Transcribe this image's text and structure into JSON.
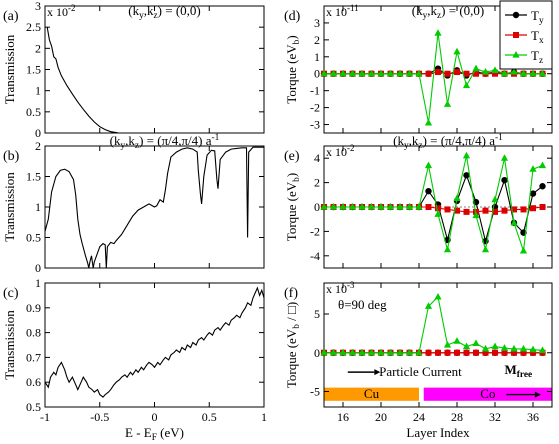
{
  "chart_data": [
    {
      "type": "line",
      "panel_label": "(a)",
      "title": "(k_y,k_z) = (0,0)",
      "ylabel": "Transmission",
      "y_exponent": "x 10^-2",
      "xlim": [
        -1,
        1
      ],
      "ylim": [
        0,
        3
      ],
      "yticks": [
        "0",
        "0.5",
        "1",
        "1.5",
        "2",
        "2.5",
        "3"
      ],
      "series": [
        {
          "values": [
            [
              -0.98,
              2.5
            ],
            [
              -0.96,
              2.2
            ],
            [
              -0.94,
              2.05
            ],
            [
              -0.92,
              1.8
            ],
            [
              -0.9,
              1.75
            ],
            [
              -0.88,
              1.55
            ],
            [
              -0.85,
              1.35
            ],
            [
              -0.8,
              1.12
            ],
            [
              -0.75,
              0.92
            ],
            [
              -0.7,
              0.73
            ],
            [
              -0.65,
              0.56
            ],
            [
              -0.6,
              0.4
            ],
            [
              -0.55,
              0.26
            ],
            [
              -0.5,
              0.15
            ],
            [
              -0.45,
              0.08
            ],
            [
              -0.4,
              0.03
            ],
            [
              -0.35,
              0.01
            ],
            [
              -0.33,
              0.0
            ]
          ]
        }
      ]
    },
    {
      "type": "line",
      "panel_label": "(b)",
      "title": "(k_y,k_z) = (π/4,π/4) a^-1",
      "ylabel": "Transmission",
      "xlim": [
        -1,
        1
      ],
      "ylim": [
        0,
        2
      ],
      "yticks": [
        "0",
        "0.5",
        "1",
        "1.5",
        "2"
      ],
      "series": [
        {
          "values": [
            [
              -1,
              0.6
            ],
            [
              -0.97,
              0.8
            ],
            [
              -0.94,
              1.25
            ],
            [
              -0.9,
              1.5
            ],
            [
              -0.86,
              1.6
            ],
            [
              -0.82,
              1.62
            ],
            [
              -0.78,
              1.58
            ],
            [
              -0.74,
              1.45
            ],
            [
              -0.72,
              1.2
            ],
            [
              -0.7,
              0.8
            ],
            [
              -0.68,
              0.55
            ],
            [
              -0.66,
              0.4
            ],
            [
              -0.63,
              0.2
            ],
            [
              -0.61,
              0.08
            ],
            [
              -0.6,
              0.0
            ],
            [
              -0.59,
              0.1
            ],
            [
              -0.575,
              0.2
            ],
            [
              -0.56,
              0.0
            ],
            [
              -0.55,
              0.1
            ],
            [
              -0.53,
              0.2
            ],
            [
              -0.5,
              0.35
            ],
            [
              -0.47,
              0.4
            ],
            [
              -0.45,
              0.38
            ],
            [
              -0.44,
              0.0
            ],
            [
              -0.43,
              0.35
            ],
            [
              -0.4,
              0.42
            ],
            [
              -0.37,
              0.4
            ],
            [
              -0.35,
              0.45
            ],
            [
              -0.3,
              0.55
            ],
            [
              -0.25,
              0.7
            ],
            [
              -0.2,
              0.85
            ],
            [
              -0.15,
              0.95
            ],
            [
              -0.1,
              1.0
            ],
            [
              -0.05,
              1.05
            ],
            [
              0,
              1.0
            ],
            [
              0.02,
              1.02
            ],
            [
              0.05,
              1.12
            ],
            [
              0.08,
              1.08
            ],
            [
              0.1,
              1.28
            ],
            [
              0.12,
              1.55
            ],
            [
              0.15,
              1.82
            ],
            [
              0.2,
              1.9
            ],
            [
              0.25,
              1.95
            ],
            [
              0.3,
              1.97
            ],
            [
              0.35,
              1.95
            ],
            [
              0.39,
              1.9
            ],
            [
              0.4,
              1.6
            ],
            [
              0.42,
              1.2
            ],
            [
              0.43,
              1.05
            ],
            [
              0.45,
              1.5
            ],
            [
              0.48,
              1.85
            ],
            [
              0.52,
              1.93
            ],
            [
              0.55,
              1.92
            ],
            [
              0.57,
              1.45
            ],
            [
              0.58,
              1.3
            ],
            [
              0.6,
              1.78
            ],
            [
              0.65,
              1.9
            ],
            [
              0.7,
              1.95
            ],
            [
              0.75,
              1.96
            ],
            [
              0.8,
              1.97
            ],
            [
              0.84,
              1.97
            ],
            [
              0.85,
              0.5
            ],
            [
              0.86,
              1.9
            ],
            [
              0.9,
              1.98
            ],
            [
              0.95,
              1.98
            ],
            [
              1,
              1.98
            ]
          ]
        }
      ]
    },
    {
      "type": "line",
      "panel_label": "(c)",
      "xlabel": "E - E_F (eV)",
      "ylabel": "Transmission",
      "xlim": [
        -1,
        1
      ],
      "ylim": [
        0.5,
        1
      ],
      "xticks": [
        "-1",
        "-0.5",
        "0",
        "0.5",
        "1"
      ],
      "yticks": [
        "0.5",
        "0.6",
        "0.7",
        "0.8",
        "0.9",
        "1"
      ],
      "series": [
        {
          "values": [
            [
              -1,
              0.6
            ],
            [
              -0.97,
              0.58
            ],
            [
              -0.95,
              0.62
            ],
            [
              -0.92,
              0.64
            ],
            [
              -0.9,
              0.63
            ],
            [
              -0.88,
              0.66
            ],
            [
              -0.85,
              0.68
            ],
            [
              -0.82,
              0.65
            ],
            [
              -0.8,
              0.62
            ],
            [
              -0.78,
              0.6
            ],
            [
              -0.75,
              0.62
            ],
            [
              -0.72,
              0.59
            ],
            [
              -0.7,
              0.57
            ],
            [
              -0.67,
              0.6
            ],
            [
              -0.65,
              0.62
            ],
            [
              -0.62,
              0.6
            ],
            [
              -0.6,
              0.58
            ],
            [
              -0.57,
              0.57
            ],
            [
              -0.55,
              0.56
            ],
            [
              -0.52,
              0.57
            ],
            [
              -0.5,
              0.55
            ],
            [
              -0.47,
              0.54
            ],
            [
              -0.45,
              0.55
            ],
            [
              -0.42,
              0.56
            ],
            [
              -0.4,
              0.57
            ],
            [
              -0.37,
              0.59
            ],
            [
              -0.35,
              0.6
            ],
            [
              -0.32,
              0.61
            ],
            [
              -0.3,
              0.62
            ],
            [
              -0.27,
              0.63
            ],
            [
              -0.25,
              0.62
            ],
            [
              -0.22,
              0.64
            ],
            [
              -0.2,
              0.63
            ],
            [
              -0.17,
              0.65
            ],
            [
              -0.15,
              0.64
            ],
            [
              -0.12,
              0.66
            ],
            [
              -0.1,
              0.65
            ],
            [
              -0.07,
              0.67
            ],
            [
              -0.05,
              0.68
            ],
            [
              -0.02,
              0.67
            ],
            [
              0,
              0.66
            ],
            [
              0.03,
              0.68
            ],
            [
              0.05,
              0.67
            ],
            [
              0.08,
              0.69
            ],
            [
              0.1,
              0.7
            ],
            [
              0.13,
              0.69
            ],
            [
              0.15,
              0.71
            ],
            [
              0.18,
              0.72
            ],
            [
              0.2,
              0.73
            ],
            [
              0.23,
              0.72
            ],
            [
              0.25,
              0.74
            ],
            [
              0.28,
              0.73
            ],
            [
              0.3,
              0.75
            ],
            [
              0.33,
              0.74
            ],
            [
              0.35,
              0.76
            ],
            [
              0.38,
              0.75
            ],
            [
              0.4,
              0.77
            ],
            [
              0.43,
              0.78
            ],
            [
              0.45,
              0.77
            ],
            [
              0.48,
              0.79
            ],
            [
              0.5,
              0.8
            ],
            [
              0.53,
              0.79
            ],
            [
              0.55,
              0.81
            ],
            [
              0.58,
              0.82
            ],
            [
              0.6,
              0.81
            ],
            [
              0.63,
              0.83
            ],
            [
              0.65,
              0.84
            ],
            [
              0.68,
              0.83
            ],
            [
              0.7,
              0.85
            ],
            [
              0.73,
              0.86
            ],
            [
              0.75,
              0.87
            ],
            [
              0.78,
              0.86
            ],
            [
              0.8,
              0.88
            ],
            [
              0.83,
              0.9
            ],
            [
              0.85,
              0.92
            ],
            [
              0.88,
              0.91
            ],
            [
              0.9,
              0.94
            ],
            [
              0.92,
              0.96
            ],
            [
              0.94,
              0.98
            ],
            [
              0.96,
              0.95
            ],
            [
              0.98,
              0.97
            ],
            [
              1,
              0.94
            ]
          ]
        }
      ]
    },
    {
      "type": "line",
      "panel_label": "(d)",
      "title": "(k_y,k_z) = (0,0)",
      "ylabel": "Torque (eV_b)",
      "y_exponent": "x 10^-11",
      "xlim": [
        14,
        38
      ],
      "ylim": [
        -3.5,
        4
      ],
      "yticks": [
        "-3",
        "-2",
        "-1",
        "0",
        "1",
        "2",
        "3"
      ],
      "legend": [
        "T_y",
        "T_x",
        "T_z"
      ],
      "legend_position": "top-right",
      "x": [
        14,
        15,
        16,
        17,
        18,
        19,
        20,
        21,
        22,
        23,
        24,
        25,
        26,
        27,
        28,
        29,
        30,
        31,
        32,
        33,
        34,
        35,
        36,
        37
      ],
      "series": [
        {
          "name": "T_y",
          "color": "#000000",
          "values": [
            0,
            0,
            0,
            0,
            0,
            0,
            0,
            0,
            0,
            0,
            0,
            0,
            0.3,
            -0.1,
            0.2,
            -0.1,
            0.1,
            0,
            0.1,
            0,
            0.1,
            0,
            0,
            0
          ]
        },
        {
          "name": "T_x",
          "color": "#dd0000",
          "values": [
            0,
            0,
            0,
            0,
            0,
            0,
            0,
            0,
            0,
            0,
            0,
            0,
            0.1,
            0,
            0.1,
            0,
            0,
            0,
            0,
            0,
            0,
            0,
            0,
            0
          ]
        },
        {
          "name": "T_z",
          "color": "#00cc00",
          "values": [
            0,
            0,
            0,
            0,
            0,
            0,
            0,
            0,
            0,
            0,
            0,
            -2.9,
            2.4,
            -1.8,
            1.3,
            -0.7,
            0.3,
            0.1,
            0.2,
            0,
            0.1,
            0,
            0,
            0
          ]
        }
      ]
    },
    {
      "type": "line",
      "panel_label": "(e)",
      "title": "(k_y,k_z) = (π/4,π/4) a^-1",
      "ylabel": "Torque (eV_b)",
      "y_exponent": "x 10^-2",
      "xlim": [
        14,
        38
      ],
      "ylim": [
        -5,
        5
      ],
      "yticks": [
        "-4",
        "-2",
        "0",
        "2",
        "4"
      ],
      "x": [
        14,
        15,
        16,
        17,
        18,
        19,
        20,
        21,
        22,
        23,
        24,
        25,
        26,
        27,
        28,
        29,
        30,
        31,
        32,
        33,
        34,
        35,
        36,
        37
      ],
      "series": [
        {
          "name": "T_y",
          "color": "#000000",
          "values": [
            0,
            0,
            0,
            0,
            0,
            0,
            0,
            0,
            0,
            0,
            0,
            1.3,
            0.2,
            -2.7,
            0.5,
            2.6,
            0.4,
            -2.8,
            0,
            2.2,
            -1.3,
            -2.1,
            1.1,
            1.7
          ]
        },
        {
          "name": "T_x",
          "color": "#dd0000",
          "values": [
            0,
            0,
            0,
            0,
            0,
            0,
            0,
            0,
            0,
            0,
            0,
            0,
            -0.1,
            -0.2,
            -0.3,
            -0.4,
            -0.4,
            -0.3,
            -0.4,
            -0.3,
            -0.2,
            -0.2,
            -0.1,
            0
          ]
        },
        {
          "name": "T_z",
          "color": "#00cc00",
          "values": [
            0,
            0,
            0,
            0,
            0,
            0,
            0,
            0,
            0,
            0,
            0,
            3.4,
            -0.6,
            -3.5,
            0.7,
            4.2,
            -0.7,
            -3.5,
            0.6,
            4.0,
            -1.3,
            -3.6,
            3.1,
            3.4
          ]
        }
      ]
    },
    {
      "type": "line",
      "panel_label": "(f)",
      "ylabel": "Torque (eV_b / □)",
      "y_exponent": "x 10^-3",
      "annotation": "θ=90 deg",
      "xlabel": "Layer Index",
      "xlim": [
        14,
        38
      ],
      "ylim": [
        -7,
        9
      ],
      "xticks": [
        "16",
        "20",
        "24",
        "28",
        "32",
        "36"
      ],
      "yticks": [
        "-5",
        "0",
        "5"
      ],
      "x": [
        14,
        15,
        16,
        17,
        18,
        19,
        20,
        21,
        22,
        23,
        24,
        25,
        26,
        27,
        28,
        29,
        30,
        31,
        32,
        33,
        34,
        35,
        36,
        37
      ],
      "series": [
        {
          "name": "T_y",
          "color": "#000000",
          "values": [
            0,
            0,
            0,
            0,
            0,
            0,
            0,
            0,
            0,
            0,
            0,
            0,
            0,
            0,
            0,
            0,
            0,
            0,
            0,
            0,
            0,
            0,
            0,
            0
          ]
        },
        {
          "name": "T_x",
          "color": "#dd0000",
          "values": [
            0,
            0,
            0,
            0,
            0,
            0,
            0,
            0,
            0,
            0,
            0,
            0,
            0,
            0,
            0,
            0,
            0,
            0,
            0,
            0,
            0,
            0,
            0,
            0
          ]
        },
        {
          "name": "T_z",
          "color": "#00cc00",
          "values": [
            0,
            0,
            0,
            0,
            0,
            0,
            0,
            0,
            0,
            0,
            0,
            6.0,
            7.2,
            1.0,
            1.5,
            0.8,
            1.2,
            0.5,
            0.8,
            0.6,
            0.5,
            0.5,
            0.4,
            0.3
          ]
        }
      ],
      "regions": [
        {
          "label": "Cu",
          "from": 14,
          "to": 24,
          "color": "#ff9900"
        },
        {
          "label": "Co",
          "from": 24.5,
          "to": 38,
          "color": "#ff00ff"
        }
      ],
      "arrow_labels": [
        "Particle Current",
        "M_free"
      ]
    }
  ]
}
